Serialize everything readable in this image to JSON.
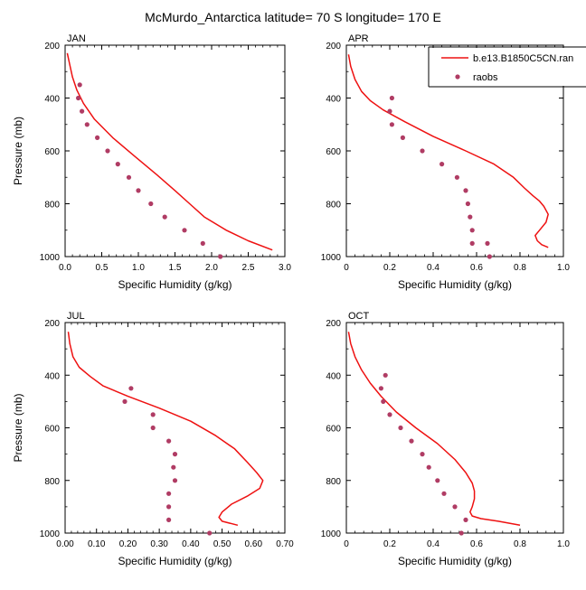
{
  "title": "McMurdo_Antarctica  latitude= 70 S longitude= 170 E",
  "legend": {
    "items": [
      {
        "label": "b.e13.B1850C5CN.ran",
        "kind": "line"
      },
      {
        "label": "raobs",
        "kind": "marker"
      }
    ]
  },
  "colors": {
    "model_line": "#ee1111",
    "obs_marker": "#b03c64"
  },
  "chart_data": [
    {
      "type": "line",
      "panel_label": "JAN",
      "xlabel": "Specific Humidity (g/kg)",
      "ylabel": "Pressure (mb)",
      "xlim": [
        0,
        3.0
      ],
      "ylim": [
        200,
        1000
      ],
      "y_reversed": true,
      "xticks": [
        "0.0",
        "0.5",
        "1.0",
        "1.5",
        "2.0",
        "2.5",
        "3.0"
      ],
      "yticks": [
        "200",
        "400",
        "600",
        "800",
        "1000"
      ],
      "series": [
        {
          "name": "b.e13.B1850C5CN.ran",
          "kind": "line",
          "x": [
            0.03,
            0.06,
            0.1,
            0.16,
            0.25,
            0.4,
            0.65,
            0.95,
            1.25,
            1.5,
            1.7,
            1.9,
            2.2,
            2.5,
            2.83
          ],
          "y": [
            230,
            270,
            320,
            370,
            420,
            480,
            550,
            620,
            690,
            750,
            800,
            850,
            900,
            940,
            975
          ]
        },
        {
          "name": "raobs",
          "kind": "marker",
          "x": [
            0.2,
            0.18,
            0.23,
            0.3,
            0.44,
            0.58,
            0.72,
            0.87,
            1.0,
            1.17,
            1.36,
            1.63,
            1.88,
            2.12
          ],
          "y": [
            350,
            400,
            450,
            500,
            550,
            600,
            650,
            700,
            750,
            800,
            850,
            900,
            950,
            1000
          ]
        }
      ]
    },
    {
      "type": "line",
      "panel_label": "APR",
      "xlabel": "Specific Humidity (g/kg)",
      "ylabel": "",
      "xlim": [
        0,
        1.0
      ],
      "ylim": [
        200,
        1000
      ],
      "y_reversed": true,
      "xticks": [
        "0",
        "0.2",
        "0.4",
        "0.6",
        "0.8",
        "1.0"
      ],
      "yticks": [
        "200",
        "400",
        "600",
        "800",
        "1000"
      ],
      "series": [
        {
          "name": "b.e13.B1850C5CN.ran",
          "kind": "line",
          "x": [
            0.01,
            0.02,
            0.04,
            0.07,
            0.11,
            0.17,
            0.27,
            0.4,
            0.55,
            0.68,
            0.77,
            0.82,
            0.86,
            0.89,
            0.91,
            0.93,
            0.92,
            0.89,
            0.87,
            0.88,
            0.9,
            0.93
          ],
          "y": [
            235,
            280,
            330,
            375,
            410,
            445,
            490,
            545,
            600,
            650,
            700,
            740,
            770,
            790,
            810,
            840,
            870,
            900,
            920,
            940,
            955,
            965
          ]
        },
        {
          "name": "raobs",
          "kind": "marker",
          "x": [
            0.21,
            0.2,
            0.21,
            0.26,
            0.35,
            0.44,
            0.51,
            0.55,
            0.56,
            0.57,
            0.58,
            0.58,
            0.65,
            0.66
          ],
          "y": [
            400,
            450,
            500,
            550,
            600,
            650,
            700,
            750,
            800,
            850,
            900,
            950,
            950,
            1000
          ]
        }
      ]
    },
    {
      "type": "line",
      "panel_label": "JUL",
      "xlabel": "Specific Humidity (g/kg)",
      "ylabel": "Pressure (mb)",
      "xlim": [
        0,
        0.7
      ],
      "ylim": [
        200,
        1000
      ],
      "y_reversed": true,
      "xticks": [
        "0.00",
        "0.10",
        "0.20",
        "0.30",
        "0.40",
        "0.50",
        "0.60",
        "0.70"
      ],
      "yticks": [
        "200",
        "400",
        "600",
        "800",
        "1000"
      ],
      "series": [
        {
          "name": "b.e13.B1850C5CN.ran",
          "kind": "line",
          "x": [
            0.01,
            0.015,
            0.025,
            0.045,
            0.08,
            0.12,
            0.2,
            0.3,
            0.4,
            0.48,
            0.54,
            0.58,
            0.61,
            0.63,
            0.62,
            0.58,
            0.53,
            0.5,
            0.49,
            0.5,
            0.55
          ],
          "y": [
            235,
            280,
            330,
            370,
            405,
            440,
            480,
            525,
            575,
            630,
            680,
            730,
            770,
            800,
            830,
            860,
            890,
            920,
            940,
            955,
            970
          ]
        },
        {
          "name": "raobs",
          "kind": "marker",
          "x": [
            0.21,
            0.19,
            0.28,
            0.28,
            0.33,
            0.35,
            0.345,
            0.35,
            0.33,
            0.33,
            0.33,
            0.46
          ],
          "y": [
            450,
            500,
            550,
            600,
            650,
            700,
            750,
            800,
            850,
            900,
            950,
            1000
          ]
        }
      ]
    },
    {
      "type": "line",
      "panel_label": "OCT",
      "xlabel": "Specific Humidity (g/kg)",
      "ylabel": "",
      "xlim": [
        0,
        1.0
      ],
      "ylim": [
        200,
        1000
      ],
      "y_reversed": true,
      "xticks": [
        "0",
        "0.2",
        "0.4",
        "0.6",
        "0.8",
        "1.0"
      ],
      "yticks": [
        "200",
        "400",
        "600",
        "800",
        "1000"
      ],
      "series": [
        {
          "name": "b.e13.B1850C5CN.ran",
          "kind": "line",
          "x": [
            0.01,
            0.02,
            0.04,
            0.07,
            0.11,
            0.16,
            0.23,
            0.32,
            0.42,
            0.5,
            0.55,
            0.58,
            0.59,
            0.59,
            0.58,
            0.57,
            0.58,
            0.62,
            0.7,
            0.8
          ],
          "y": [
            235,
            280,
            330,
            380,
            430,
            480,
            540,
            600,
            660,
            720,
            770,
            810,
            840,
            870,
            900,
            920,
            935,
            945,
            955,
            970
          ]
        },
        {
          "name": "raobs",
          "kind": "marker",
          "x": [
            0.18,
            0.16,
            0.17,
            0.2,
            0.25,
            0.3,
            0.35,
            0.38,
            0.42,
            0.45,
            0.5,
            0.55,
            0.53
          ],
          "y": [
            400,
            450,
            500,
            550,
            600,
            650,
            700,
            750,
            800,
            850,
            900,
            950,
            1000
          ]
        }
      ]
    }
  ]
}
